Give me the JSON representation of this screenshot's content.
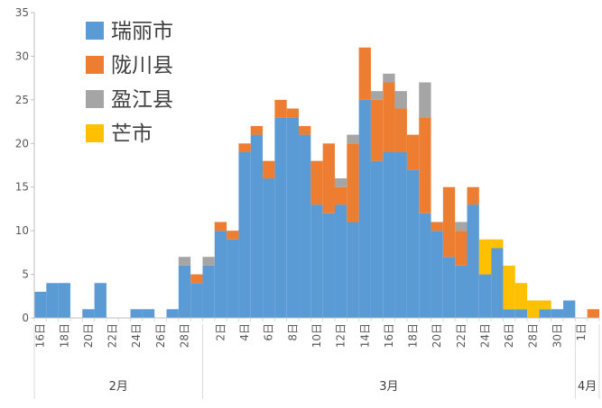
{
  "chart_data": {
    "type": "bar",
    "stacked": true,
    "ylim": [
      0,
      35
    ],
    "yticks": [
      0,
      5,
      10,
      15,
      20,
      25,
      30,
      35
    ],
    "x": [
      16,
      17,
      18,
      19,
      20,
      21,
      22,
      23,
      24,
      25,
      26,
      27,
      28,
      29,
      1,
      2,
      3,
      4,
      5,
      6,
      7,
      8,
      9,
      10,
      11,
      12,
      13,
      14,
      15,
      16,
      17,
      18,
      19,
      20,
      21,
      22,
      23,
      24,
      25,
      26,
      27,
      28,
      29,
      30,
      31,
      1,
      2
    ],
    "date_labels": [
      "16日",
      "18日",
      "20日",
      "22日",
      "24日",
      "26日",
      "28日",
      "2日",
      "4日",
      "6日",
      "8日",
      "10日",
      "12日",
      "14日",
      "16日",
      "18日",
      "20日",
      "22日",
      "24日",
      "26日",
      "28日",
      "30日",
      "1日"
    ],
    "date_label_index": [
      0,
      2,
      4,
      6,
      8,
      10,
      12,
      15,
      17,
      19,
      21,
      23,
      25,
      27,
      29,
      31,
      33,
      35,
      37,
      39,
      41,
      43,
      45
    ],
    "months": [
      {
        "label": "2月",
        "start": 0,
        "end": 14
      },
      {
        "label": "3月",
        "start": 14,
        "end": 45
      },
      {
        "label": "4月",
        "start": 45,
        "end": 47
      }
    ],
    "series": [
      {
        "name": "瑞丽市",
        "color": "#5B9BD5",
        "values": [
          3,
          4,
          4,
          0,
          1,
          4,
          0,
          0,
          1,
          1,
          0,
          1,
          6,
          4,
          6,
          10,
          9,
          19,
          21,
          16,
          23,
          23,
          21,
          13,
          12,
          13,
          11,
          25,
          18,
          19,
          19,
          17,
          12,
          10,
          7,
          6,
          13,
          5,
          8,
          1,
          1,
          0,
          1,
          1,
          2,
          0,
          0
        ]
      },
      {
        "name": "陇川县",
        "color": "#ED7D31",
        "values": [
          0,
          0,
          0,
          0,
          0,
          0,
          0,
          0,
          0,
          0,
          0,
          0,
          0,
          1,
          0,
          1,
          1,
          1,
          1,
          2,
          2,
          1,
          1,
          5,
          8,
          2,
          9,
          6,
          7,
          8,
          5,
          4,
          11,
          1,
          8,
          4,
          2,
          0,
          0,
          0,
          0,
          0,
          0,
          0,
          0,
          0,
          1
        ]
      },
      {
        "name": "盈江县",
        "color": "#A5A5A5",
        "values": [
          0,
          0,
          0,
          0,
          0,
          0,
          0,
          0,
          0,
          0,
          0,
          0,
          1,
          0,
          1,
          0,
          0,
          0,
          0,
          0,
          0,
          0,
          0,
          0,
          0,
          1,
          1,
          0,
          1,
          1,
          2,
          0,
          4,
          0,
          0,
          1,
          0,
          0,
          0,
          0,
          0,
          0,
          0,
          0,
          0,
          0,
          0
        ]
      },
      {
        "name": "芒市",
        "color": "#FFC000",
        "values": [
          0,
          0,
          0,
          0,
          0,
          0,
          0,
          0,
          0,
          0,
          0,
          0,
          0,
          0,
          0,
          0,
          0,
          0,
          0,
          0,
          0,
          0,
          0,
          0,
          0,
          0,
          0,
          0,
          0,
          0,
          0,
          0,
          0,
          0,
          0,
          0,
          0,
          4,
          1,
          5,
          3,
          2,
          1,
          0,
          0,
          0,
          0
        ]
      }
    ],
    "legend_position": "top-left"
  }
}
